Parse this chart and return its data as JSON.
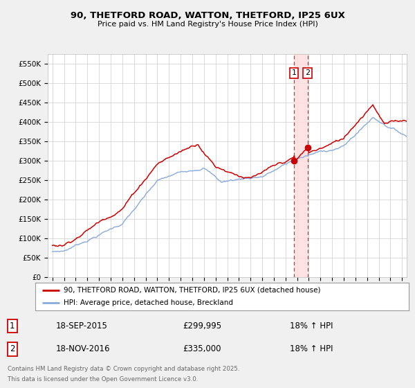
{
  "title_line1": "90, THETFORD ROAD, WATTON, THETFORD, IP25 6UX",
  "title_line2": "Price paid vs. HM Land Registry's House Price Index (HPI)",
  "legend_label1": "90, THETFORD ROAD, WATTON, THETFORD, IP25 6UX (detached house)",
  "legend_label2": "HPI: Average price, detached house, Breckland",
  "line1_color": "#cc0000",
  "line2_color": "#88aadd",
  "transaction1_date": "18-SEP-2015",
  "transaction1_price": "£299,995",
  "transaction1_hpi": "18% ↑ HPI",
  "transaction2_date": "18-NOV-2016",
  "transaction2_price": "£335,000",
  "transaction2_hpi": "18% ↑ HPI",
  "transaction1_x": 2015.72,
  "transaction2_x": 2016.89,
  "ylabel_values": [
    "£0",
    "£50K",
    "£100K",
    "£150K",
    "£200K",
    "£250K",
    "£300K",
    "£350K",
    "£400K",
    "£450K",
    "£500K",
    "£550K"
  ],
  "yticks": [
    0,
    50000,
    100000,
    150000,
    200000,
    250000,
    300000,
    350000,
    400000,
    450000,
    500000,
    550000
  ],
  "ylim": [
    0,
    575000
  ],
  "footer_line1": "Contains HM Land Registry data © Crown copyright and database right 2025.",
  "footer_line2": "This data is licensed under the Open Government Licence v3.0.",
  "bg_color": "#f0f0f0",
  "plot_bg_color": "#ffffff",
  "grid_color": "#cccccc",
  "shade_color": "#ffdddd"
}
